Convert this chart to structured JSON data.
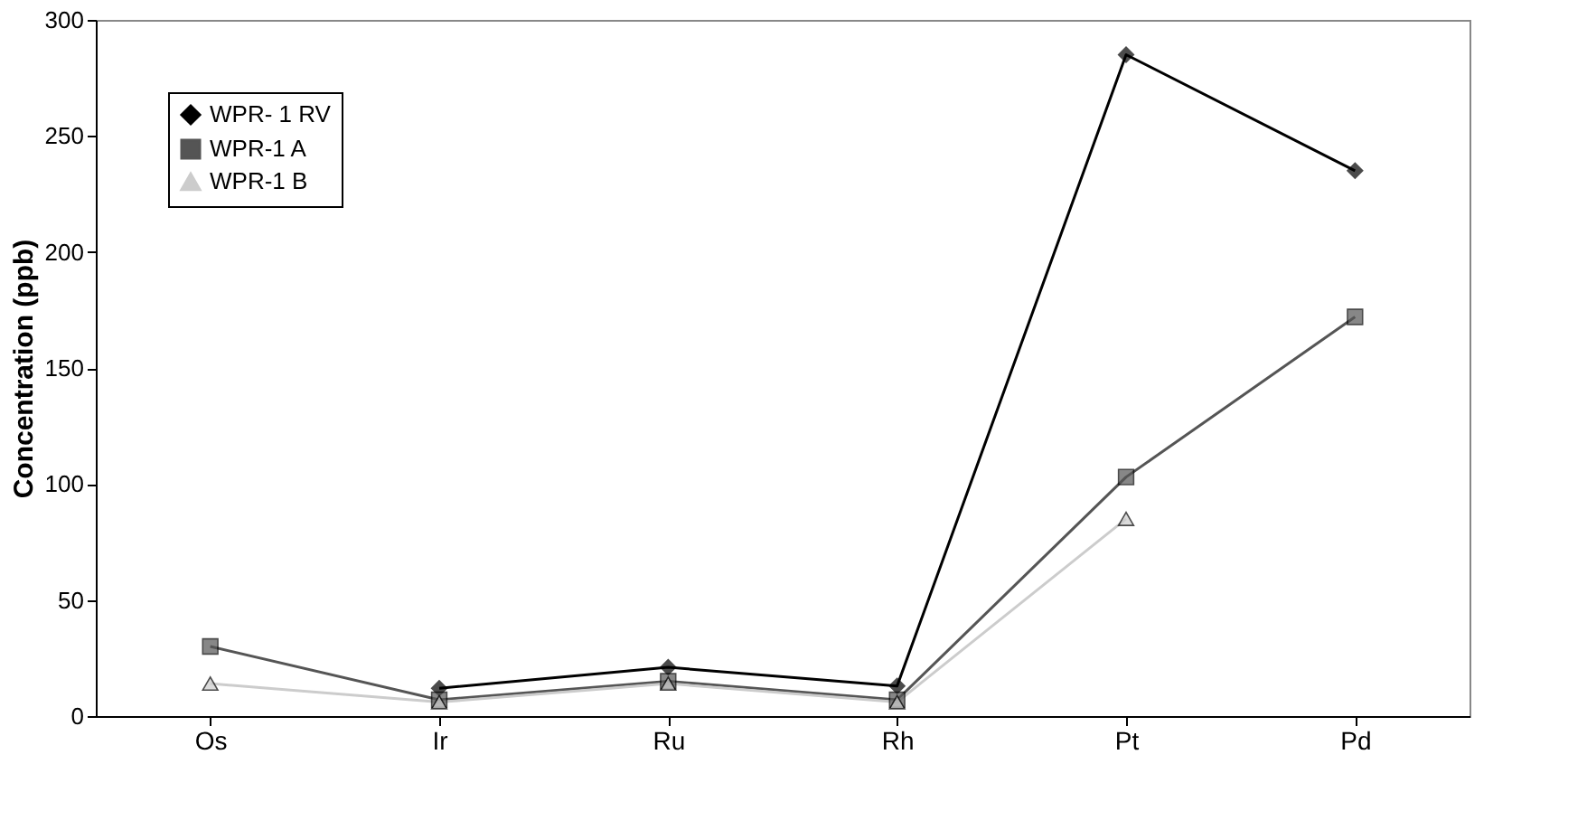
{
  "chart_data": {
    "type": "line",
    "ylabel": "Concentration (ppb)",
    "categories": [
      "Os",
      "Ir",
      "Ru",
      "Rh",
      "Pt",
      "Pd"
    ],
    "series": [
      {
        "name": "WPR- 1 RV",
        "color": "#000000",
        "marker": "diamond",
        "values": [
          null,
          12,
          21,
          13,
          285,
          235
        ]
      },
      {
        "name": "WPR-1 A",
        "color": "#555555",
        "marker": "square",
        "values": [
          30,
          7,
          15,
          7,
          103,
          172
        ]
      },
      {
        "name": "WPR-1 B",
        "color": "#cccccc",
        "marker": "triangle",
        "values": [
          14,
          6,
          14,
          6,
          85,
          null
        ]
      }
    ],
    "ylim": [
      0,
      300
    ],
    "yticks": [
      0,
      50,
      100,
      150,
      200,
      250,
      300
    ],
    "grid": false,
    "legend": "top left",
    "line_style": "solid"
  }
}
